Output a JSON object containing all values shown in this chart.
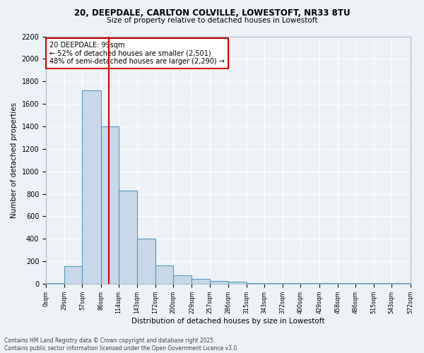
{
  "title_line1": "20, DEEPDALE, CARLTON COLVILLE, LOWESTOFT, NR33 8TU",
  "title_line2": "Size of property relative to detached houses in Lowestoft",
  "xlabel": "Distribution of detached houses by size in Lowestoft",
  "ylabel": "Number of detached properties",
  "bar_values": [
    10,
    160,
    1720,
    1400,
    830,
    400,
    165,
    75,
    45,
    25,
    20,
    10,
    5,
    5,
    5,
    5,
    5,
    5,
    5,
    5
  ],
  "bin_edges": [
    0,
    29,
    57,
    86,
    114,
    143,
    172,
    200,
    229,
    257,
    286,
    315,
    343,
    372,
    400,
    429,
    458,
    486,
    515,
    543,
    572
  ],
  "x_tick_labels": [
    "0sqm",
    "29sqm",
    "57sqm",
    "86sqm",
    "114sqm",
    "143sqm",
    "172sqm",
    "200sqm",
    "229sqm",
    "257sqm",
    "286sqm",
    "315sqm",
    "343sqm",
    "372sqm",
    "400sqm",
    "429sqm",
    "458sqm",
    "486sqm",
    "515sqm",
    "543sqm",
    "572sqm"
  ],
  "ylim": [
    0,
    2200
  ],
  "bar_color": "#c8d8e8",
  "bar_edge_color": "#5599bb",
  "vline_x": 99,
  "vline_color": "#cc0000",
  "annotation_title": "20 DEEPDALE: 99sqm",
  "annotation_line1": "← 52% of detached houses are smaller (2,501)",
  "annotation_line2": "48% of semi-detached houses are larger (2,290) →",
  "annotation_box_color": "#cc0000",
  "background_color": "#edf2f7",
  "grid_color": "#ffffff",
  "footer_line1": "Contains HM Land Registry data © Crown copyright and database right 2025.",
  "footer_line2": "Contains public sector information licensed under the Open Government Licence v3.0."
}
